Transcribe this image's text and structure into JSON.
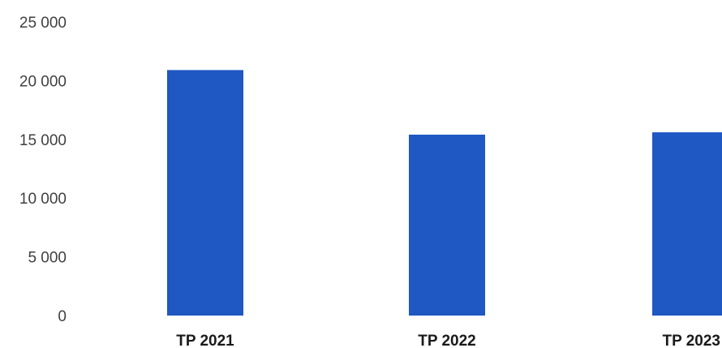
{
  "chart_data": {
    "type": "bar",
    "title": "",
    "xlabel": "",
    "ylabel": "",
    "categories": [
      "TP 2021",
      "TP 2022",
      "TP 2023"
    ],
    "values": [
      20900,
      15400,
      15600
    ],
    "ylim": [
      0,
      25000
    ],
    "yticks": [
      0,
      5000,
      10000,
      15000,
      20000,
      25000
    ],
    "ytick_labels": [
      "0",
      "5 000",
      "10 000",
      "15 000",
      "20 000",
      "25 000"
    ],
    "grid": false,
    "legend": "none",
    "bar_color": "#1f57c3"
  }
}
